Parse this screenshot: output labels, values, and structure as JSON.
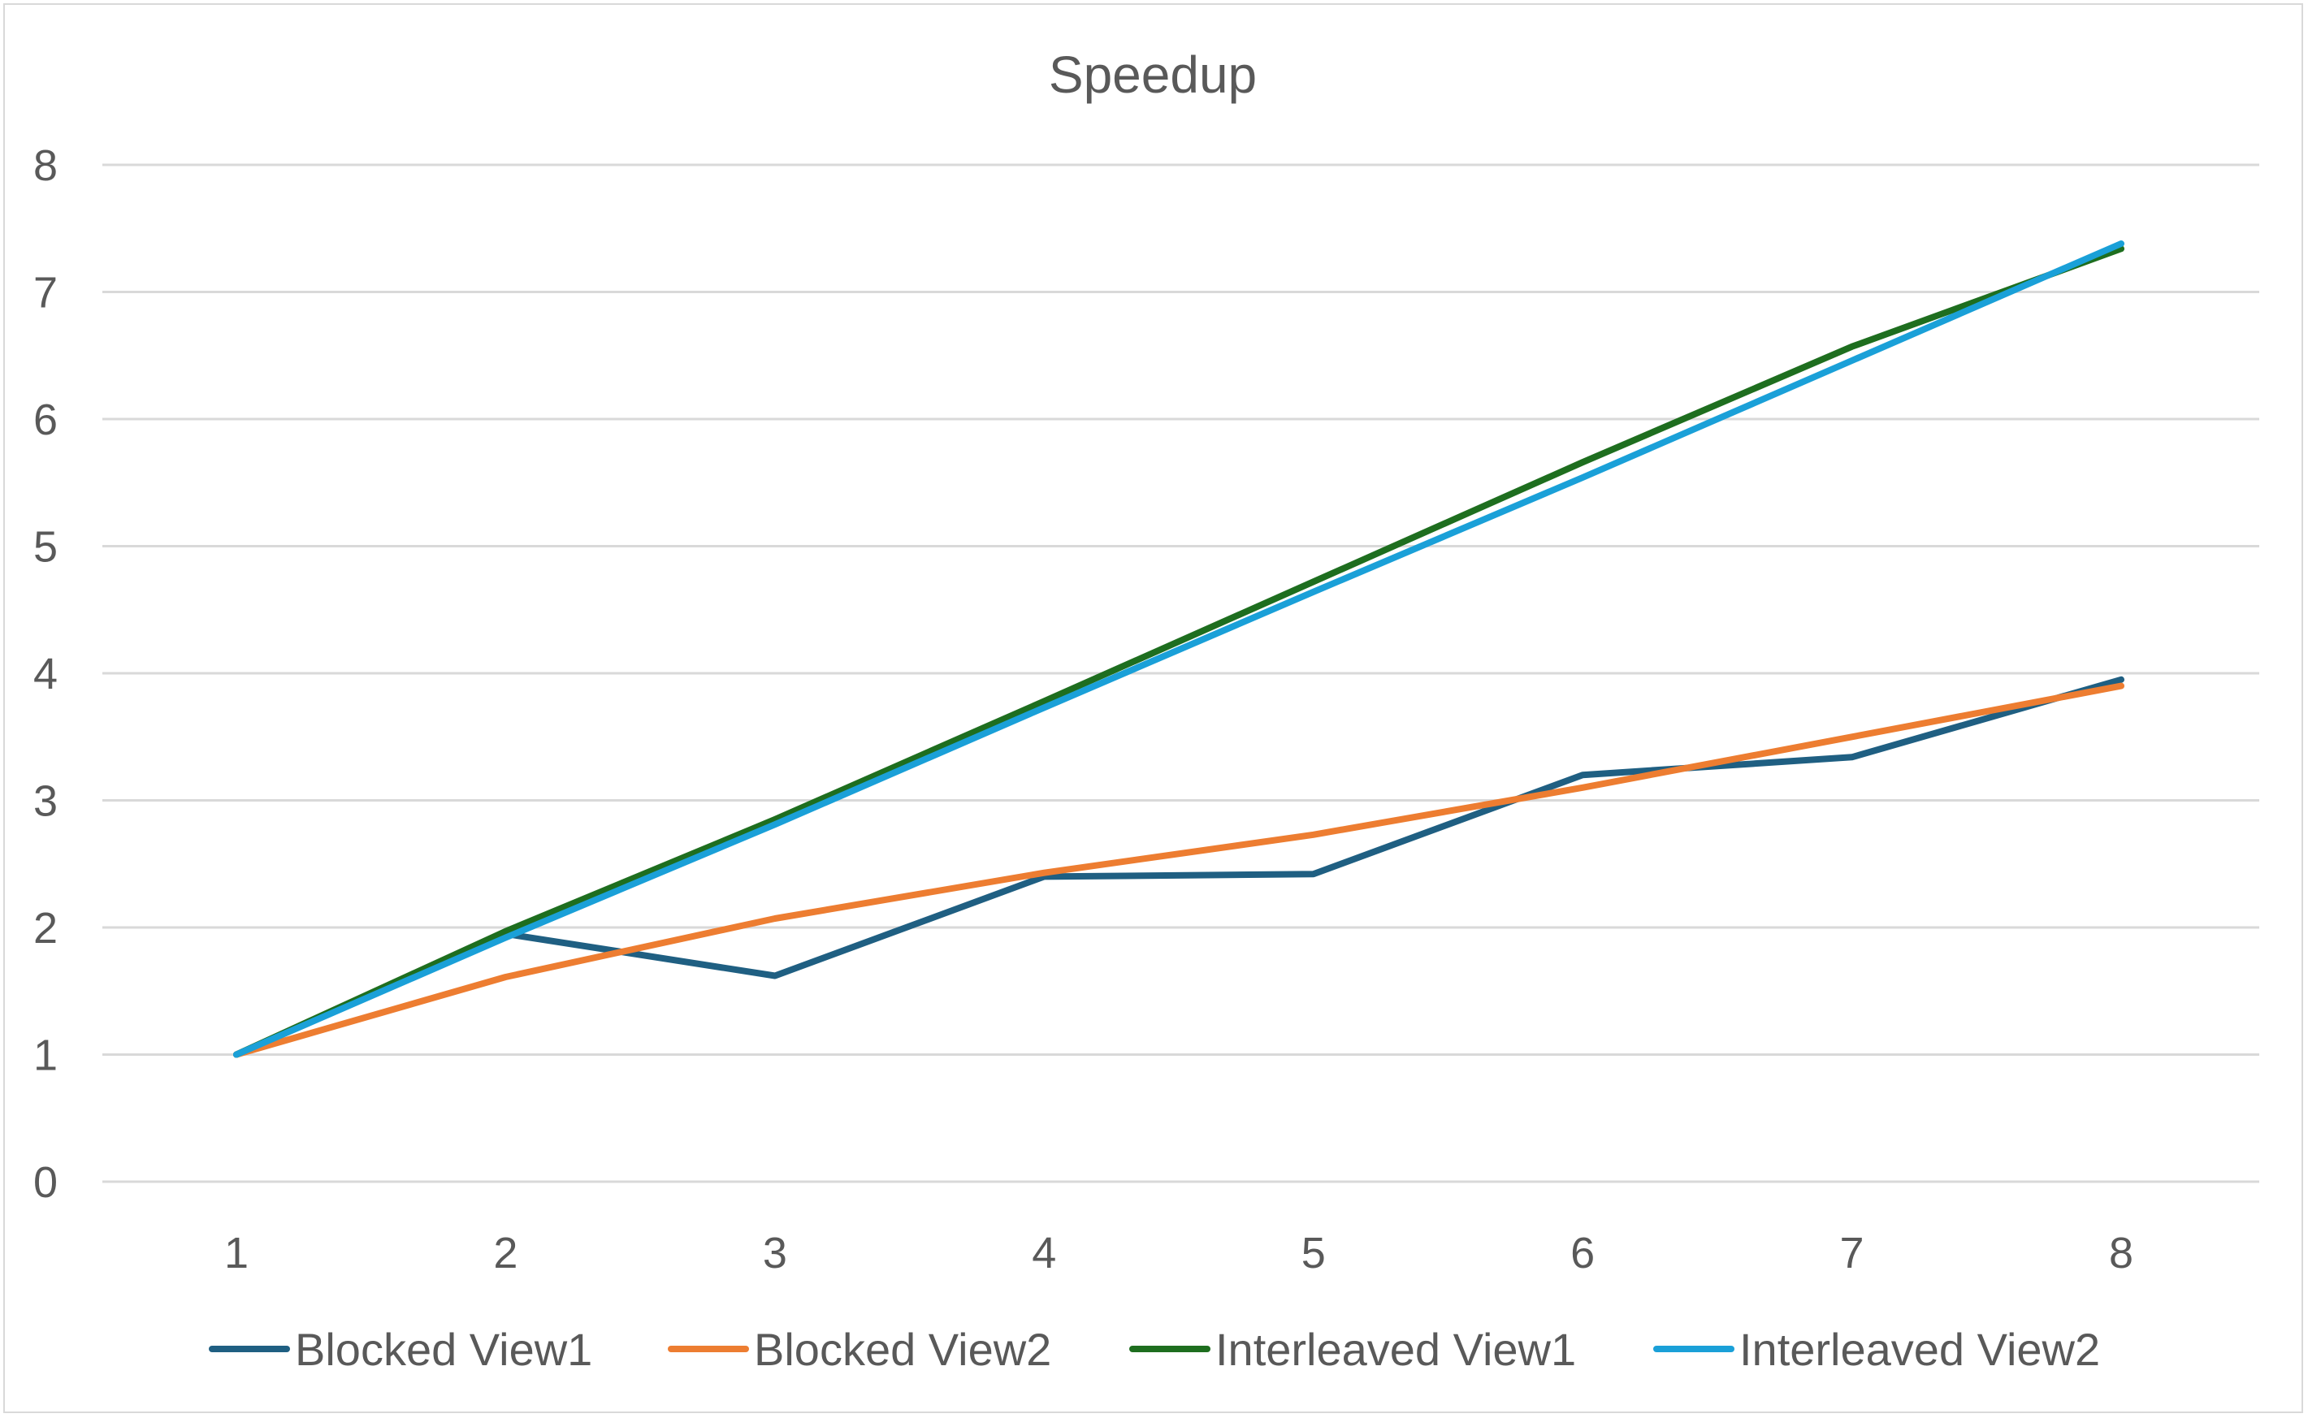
{
  "chart_data": {
    "type": "line",
    "title": "Speedup",
    "xlabel": "",
    "ylabel": "",
    "categories": [
      "1",
      "2",
      "3",
      "4",
      "5",
      "6",
      "7",
      "8"
    ],
    "ylim": [
      0,
      8
    ],
    "yticks": [
      "0",
      "1",
      "2",
      "3",
      "4",
      "5",
      "6",
      "7",
      "8"
    ],
    "grid": true,
    "legend": "bottom",
    "series": [
      {
        "name": "Blocked View1",
        "color": "#1f5f82",
        "values": [
          1.0,
          1.95,
          1.62,
          2.4,
          2.42,
          3.2,
          3.34,
          3.95
        ]
      },
      {
        "name": "Blocked View2",
        "color": "#ed7d31",
        "values": [
          1.0,
          1.61,
          2.07,
          2.43,
          2.73,
          3.1,
          3.5,
          3.9
        ]
      },
      {
        "name": "Interleaved View1",
        "color": "#1e6e1f",
        "values": [
          1.0,
          1.97,
          2.85,
          3.78,
          4.72,
          5.66,
          6.57,
          7.34
        ]
      },
      {
        "name": "Interleaved View2",
        "color": "#1aa0d8",
        "values": [
          1.0,
          1.92,
          2.81,
          3.73,
          4.64,
          5.54,
          6.46,
          7.38
        ]
      }
    ]
  }
}
